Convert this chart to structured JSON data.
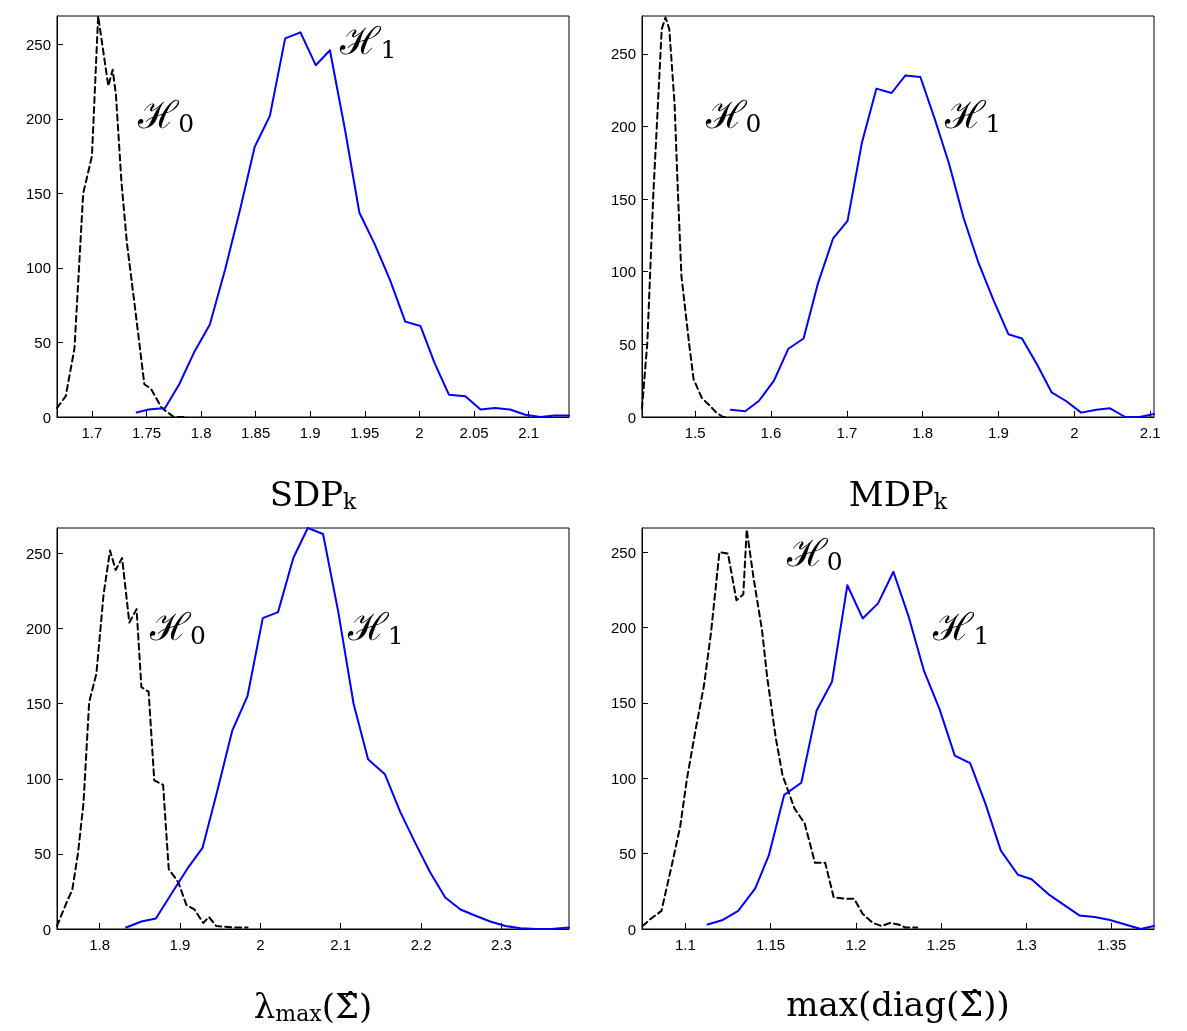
{
  "chart_data": [
    {
      "type": "line",
      "xlabel": "SDP$_{k}$",
      "xlim": [
        1.668,
        2.137
      ],
      "ylim": [
        0,
        269
      ],
      "xticks": [
        1.7,
        1.75,
        1.8,
        1.85,
        1.9,
        1.95,
        2,
        2.05,
        2.1
      ],
      "yticks": [
        0,
        50,
        100,
        150,
        200,
        250
      ],
      "grid": false,
      "marker": "none",
      "annotations": [
        "ℋ$_{0}$",
        "ℋ$_{1}$"
      ],
      "series": [
        {
          "color": "#000000",
          "line_style": "dashed",
          "x": [
            1.668,
            1.676,
            1.684,
            1.692,
            1.7,
            1.7057,
            1.715,
            1.719,
            1.722,
            1.727,
            1.732,
            1.739,
            1.748,
            1.754,
            1.764,
            1.775,
            1.787
          ],
          "values": [
            6,
            14,
            46,
            150,
            175,
            269,
            222,
            233,
            216,
            158,
            117,
            76,
            22,
            19,
            6,
            0,
            0
          ]
        },
        {
          "color": "#0000ff",
          "line_style": "solid",
          "x": [
            1.741,
            1.752,
            1.767,
            1.78,
            1.794,
            1.808,
            1.822,
            1.836,
            1.849,
            1.863,
            1.877,
            1.891,
            1.905,
            1.918,
            1.932,
            1.945,
            1.959,
            1.973,
            1.987,
            2.001,
            2.014,
            2.027,
            2.042,
            2.056,
            2.069,
            2.083,
            2.097,
            2.111,
            2.124,
            2.137
          ],
          "values": [
            3,
            5,
            6,
            22,
            44,
            62,
            99,
            140,
            181,
            202,
            254,
            258,
            236,
            246,
            192,
            137,
            116,
            92,
            64,
            61,
            36,
            15,
            14,
            5,
            6,
            5,
            1.5,
            0,
            1,
            1
          ]
        }
      ]
    },
    {
      "type": "line",
      "xlabel": "MDP$_{k}$",
      "xlim": [
        1.43,
        2.105
      ],
      "ylim": [
        0,
        276
      ],
      "xticks": [
        1.5,
        1.6,
        1.7,
        1.8,
        1.9,
        2,
        2.1
      ],
      "yticks": [
        0,
        50,
        100,
        150,
        200,
        250
      ],
      "grid": false,
      "marker": "none",
      "annotations": [
        "ℋ$_{0}$",
        "ℋ$_{1}$"
      ],
      "series": [
        {
          "color": "#000000",
          "line_style": "dashed",
          "x": [
            1.43,
            1.437,
            1.445,
            1.45,
            1.456,
            1.461,
            1.466,
            1.473,
            1.477,
            1.482,
            1.492,
            1.498,
            1.509,
            1.519,
            1.528,
            1.537,
            1.544
          ],
          "values": [
            6,
            51,
            154,
            205,
            267,
            275,
            267,
            215,
            159,
            97,
            51,
            26,
            13,
            8,
            3,
            0,
            0
          ]
        },
        {
          "color": "#0000ff",
          "line_style": "solid",
          "x": [
            1.547,
            1.566,
            1.584,
            1.604,
            1.623,
            1.643,
            1.662,
            1.682,
            1.701,
            1.72,
            1.739,
            1.759,
            1.777,
            1.797,
            1.816,
            1.835,
            1.854,
            1.873,
            1.893,
            1.913,
            1.931,
            1.951,
            1.97,
            1.989,
            2.009,
            2.029,
            2.047,
            2.067,
            2.086,
            2.105
          ],
          "values": [
            5,
            4,
            11,
            25,
            47,
            54,
            92,
            123,
            135,
            189,
            226,
            223,
            235,
            234,
            205,
            174,
            137,
            107,
            81,
            57,
            54,
            36,
            17,
            11,
            3,
            5,
            6,
            0,
            0,
            2
          ]
        }
      ]
    },
    {
      "type": "line",
      "xlabel": "λ$_{max}$(Σ̂)",
      "xlim": [
        1.747,
        2.384
      ],
      "ylim": [
        0,
        267
      ],
      "xticks": [
        1.8,
        1.9,
        2,
        2.1,
        2.2,
        2.3
      ],
      "yticks": [
        0,
        50,
        100,
        150,
        200,
        250
      ],
      "grid": false,
      "marker": "none",
      "annotations": [
        "ℋ$_{0}$",
        "ℋ$_{1}$"
      ],
      "series": [
        {
          "color": "#000000",
          "line_style": "dashed",
          "x": [
            1.747,
            1.76,
            1.766,
            1.773,
            1.78,
            1.787,
            1.796,
            1.805,
            1.813,
            1.82,
            1.828,
            1.837,
            1.846,
            1.852,
            1.861,
            1.868,
            1.879,
            1.886,
            1.898,
            1.908,
            1.918,
            1.929,
            1.936,
            1.945,
            1.966,
            1.984
          ],
          "values": [
            2,
            19,
            26,
            50,
            84,
            151,
            170,
            223,
            252,
            239,
            247,
            204,
            213,
            161,
            158,
            99,
            96,
            40,
            31,
            16,
            13,
            4,
            8,
            2,
            1,
            1
          ]
        },
        {
          "color": "#0000ff",
          "line_style": "solid",
          "x": [
            1.833,
            1.852,
            1.87,
            1.89,
            1.909,
            1.928,
            1.946,
            1.965,
            1.984,
            2.003,
            2.022,
            2.041,
            2.059,
            2.078,
            2.097,
            2.116,
            2.134,
            2.155,
            2.174,
            2.193,
            2.211,
            2.23,
            2.249,
            2.267,
            2.286,
            2.305,
            2.324,
            2.343,
            2.362,
            2.384
          ],
          "values": [
            1,
            5,
            7,
            24,
            40,
            54,
            91,
            132,
            155,
            207,
            211,
            247,
            267,
            263,
            211,
            150,
            113,
            103,
            78,
            57,
            38,
            21,
            13,
            9,
            5,
            2,
            0.5,
            0,
            0,
            1
          ]
        }
      ]
    },
    {
      "type": "line",
      "xlabel": "max(diag(Σ̂))",
      "xlim": [
        1.0746,
        1.3748
      ],
      "ylim": [
        0,
        266
      ],
      "xticks": [
        1.1,
        1.15,
        1.2,
        1.25,
        1.3,
        1.35
      ],
      "yticks": [
        0,
        50,
        100,
        150,
        200,
        250
      ],
      "grid": false,
      "marker": "none",
      "annotations": [
        "ℋ$_{0}$",
        "ℋ$_{1}$"
      ],
      "series": [
        {
          "color": "#000000",
          "line_style": "dashed",
          "x": [
            1.075,
            1.08,
            1.086,
            1.092,
            1.097,
            1.101,
            1.106,
            1.111,
            1.115,
            1.12,
            1.125,
            1.13,
            1.134,
            1.136,
            1.14,
            1.145,
            1.148,
            1.153,
            1.157,
            1.164,
            1.17,
            1.176,
            1.182,
            1.187,
            1.194,
            1.199,
            1.204,
            1.21,
            1.215,
            1.22,
            1.225,
            1.229,
            1.236
          ],
          "values": [
            2,
            7,
            12,
            42,
            68,
            100,
            132,
            162,
            196,
            250,
            249,
            218,
            222,
            265,
            233,
            198,
            167,
            127,
            102,
            80,
            70,
            44,
            44,
            21,
            20,
            20,
            10,
            4,
            2,
            4,
            3,
            1,
            1
          ]
        },
        {
          "color": "#0000ff",
          "line_style": "solid",
          "x": [
            1.113,
            1.122,
            1.131,
            1.141,
            1.149,
            1.158,
            1.168,
            1.177,
            1.186,
            1.195,
            1.204,
            1.213,
            1.222,
            1.231,
            1.24,
            1.249,
            1.258,
            1.267,
            1.276,
            1.285,
            1.295,
            1.303,
            1.313,
            1.322,
            1.331,
            1.34,
            1.349,
            1.358,
            1.367,
            1.3748
          ],
          "values": [
            3,
            6,
            12,
            27,
            49,
            89,
            97,
            145,
            164,
            228,
            206,
            216,
            237,
            207,
            171,
            146,
            115,
            110,
            83,
            52,
            36,
            33,
            23,
            16,
            9,
            8,
            6,
            3,
            0,
            2
          ]
        }
      ]
    }
  ]
}
